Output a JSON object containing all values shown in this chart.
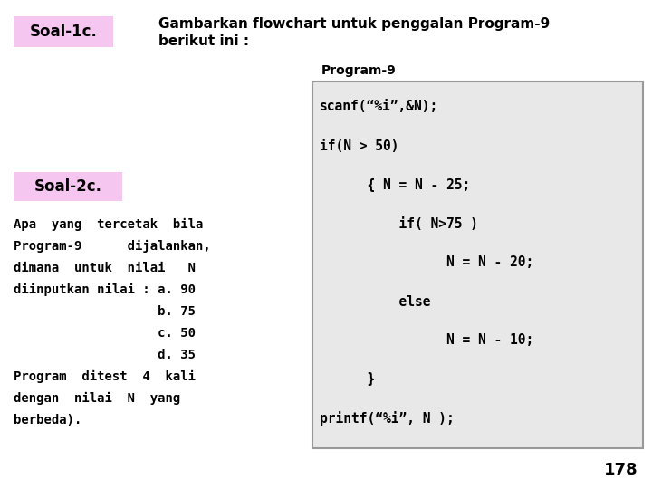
{
  "bg_color": "#ffffff",
  "soal1c_label": "Soal-1c.",
  "soal1c_bg": "#f5c6f0",
  "soal1c_desc_line1": "Gambarkan flowchart untuk penggalan Program-9",
  "soal1c_desc_line2": "berikut ini :",
  "program9_label": "Program-9",
  "code_bg": "#e8e8e8",
  "code_border": "#999999",
  "code_lines": [
    "scanf(“%i”,&N);",
    "if(N > 50)",
    "      { N = N - 25;",
    "          if( N>75 )",
    "                N = N - 20;",
    "          else",
    "                N = N - 10;",
    "      }",
    "printf(“%i”, N );"
  ],
  "soal2c_label": "Soal-2c.",
  "soal2c_bg": "#f5c6f0",
  "left_text_lines": [
    "Apa  yang  tercetak  bila",
    "Program-9      dijalankan,",
    "dimana  untuk  nilai   N",
    "diinputkan nilai : a. 90",
    "                   b. 75",
    "                   c. 50",
    "                   d. 35",
    "Program  ditest  4  kali",
    "dengan  nilai  N  yang",
    "berbeda)."
  ],
  "page_number": "178",
  "soal1c_fontsize": 12,
  "desc_fontsize": 11,
  "program9_fontsize": 10,
  "code_fontsize": 10.5,
  "body_fontsize": 10,
  "page_fontsize": 13
}
